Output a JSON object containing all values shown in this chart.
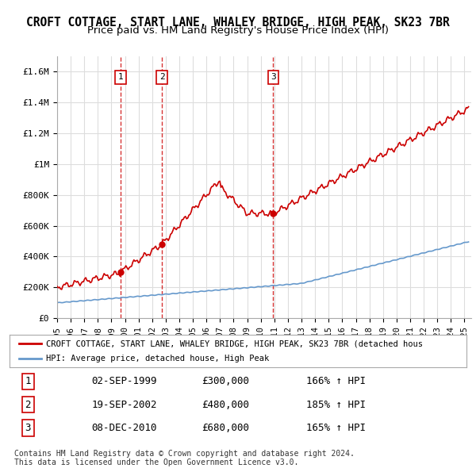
{
  "title": "CROFT COTTAGE, START LANE, WHALEY BRIDGE, HIGH PEAK, SK23 7BR",
  "subtitle": "Price paid vs. HM Land Registry's House Price Index (HPI)",
  "title_fontsize": 10.5,
  "subtitle_fontsize": 9.5,
  "ylim": [
    0,
    1700000
  ],
  "yticks": [
    0,
    200000,
    400000,
    600000,
    800000,
    1000000,
    1200000,
    1400000,
    1600000
  ],
  "ytick_labels": [
    "£0",
    "£200K",
    "£400K",
    "£600K",
    "£800K",
    "£1M",
    "£1.2M",
    "£1.4M",
    "£1.6M"
  ],
  "background_color": "#ffffff",
  "grid_color": "#dddddd",
  "sale_dates": [
    1999.67,
    2002.72,
    2010.92
  ],
  "sale_prices": [
    300000,
    480000,
    680000
  ],
  "sale_labels": [
    "1",
    "2",
    "3"
  ],
  "legend_line1": "CROFT COTTAGE, START LANE, WHALEY BRIDGE, HIGH PEAK, SK23 7BR (detached hous",
  "legend_line2": "HPI: Average price, detached house, High Peak",
  "table_data": [
    [
      "1",
      "02-SEP-1999",
      "£300,000",
      "166% ↑ HPI"
    ],
    [
      "2",
      "19-SEP-2002",
      "£480,000",
      "185% ↑ HPI"
    ],
    [
      "3",
      "08-DEC-2010",
      "£680,000",
      "165% ↑ HPI"
    ]
  ],
  "footer_line1": "Contains HM Land Registry data © Crown copyright and database right 2024.",
  "footer_line2": "This data is licensed under the Open Government Licence v3.0.",
  "red_line_color": "#cc0000",
  "blue_line_color": "#6699cc",
  "vline_color": "#cc0000"
}
